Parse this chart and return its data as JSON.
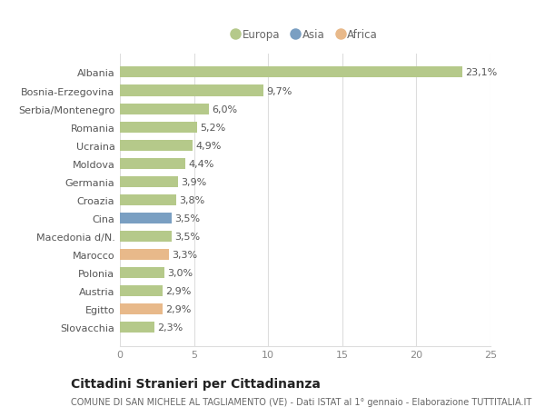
{
  "categories": [
    "Slovacchia",
    "Egitto",
    "Austria",
    "Polonia",
    "Marocco",
    "Macedonia d/N.",
    "Cina",
    "Croazia",
    "Germania",
    "Moldova",
    "Ucraina",
    "Romania",
    "Serbia/Montenegro",
    "Bosnia-Erzegovina",
    "Albania"
  ],
  "values": [
    2.3,
    2.9,
    2.9,
    3.0,
    3.3,
    3.5,
    3.5,
    3.8,
    3.9,
    4.4,
    4.9,
    5.2,
    6.0,
    9.7,
    23.1
  ],
  "labels": [
    "2,3%",
    "2,9%",
    "2,9%",
    "3,0%",
    "3,3%",
    "3,5%",
    "3,5%",
    "3,8%",
    "3,9%",
    "4,4%",
    "4,9%",
    "5,2%",
    "6,0%",
    "9,7%",
    "23,1%"
  ],
  "colors": [
    "#b5c98a",
    "#e8b98a",
    "#b5c98a",
    "#b5c98a",
    "#e8b98a",
    "#b5c98a",
    "#7a9fc2",
    "#b5c98a",
    "#b5c98a",
    "#b5c98a",
    "#b5c98a",
    "#b5c98a",
    "#b5c98a",
    "#b5c98a",
    "#b5c98a"
  ],
  "continent_labels": [
    "Europa",
    "Asia",
    "Africa"
  ],
  "continent_colors": [
    "#b5c98a",
    "#7a9fc2",
    "#e8b98a"
  ],
  "title": "Cittadini Stranieri per Cittadinanza",
  "subtitle": "COMUNE DI SAN MICHELE AL TAGLIAMENTO (VE) - Dati ISTAT al 1° gennaio - Elaborazione TUTTITALIA.IT",
  "xlim": [
    0,
    25
  ],
  "xticks": [
    0,
    5,
    10,
    15,
    20,
    25
  ],
  "bg_color": "#ffffff",
  "grid_color": "#dddddd",
  "bar_height": 0.6,
  "label_fontsize": 8,
  "tick_fontsize": 8,
  "title_fontsize": 10,
  "subtitle_fontsize": 7
}
